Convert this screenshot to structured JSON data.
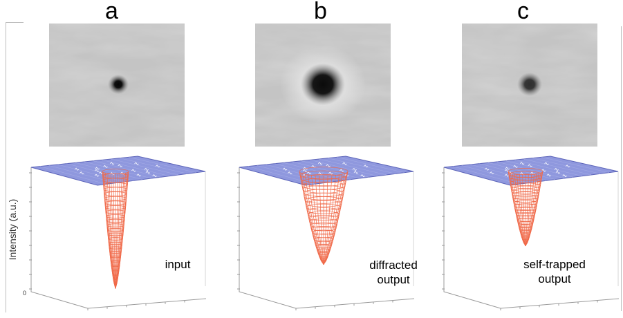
{
  "figure": {
    "panels": [
      {
        "id": "a",
        "label": "a",
        "annotation_lines": [
          "input"
        ],
        "spot": "small-dark",
        "peak_depth": 0.88,
        "peak_width": 0.55
      },
      {
        "id": "b",
        "label": "b",
        "annotation_lines": [
          "diffracted",
          "output"
        ],
        "spot": "large-dark",
        "peak_depth": 0.7,
        "peak_width": 1.35
      },
      {
        "id": "c",
        "label": "c",
        "annotation_lines": [
          "self-trapped",
          "output"
        ],
        "spot": "medium-faint",
        "peak_depth": 0.56,
        "peak_width": 0.85
      }
    ],
    "y_axis_label": "Intensity (a.u.)",
    "zero_tick": "0",
    "colors": {
      "plane": "#8f98de",
      "plane_edge": "#5b63b8",
      "mesh": "#f06a4a",
      "axis": "#999999"
    }
  }
}
